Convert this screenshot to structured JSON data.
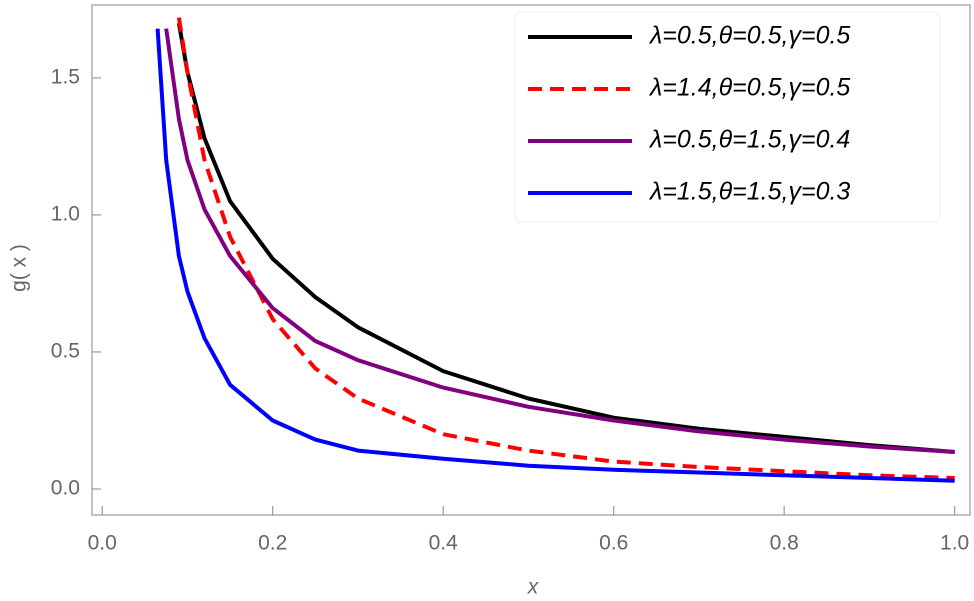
{
  "chart_data": {
    "type": "line",
    "x_label": "x",
    "y_label": "g( x )",
    "x": [
      0.065,
      0.075,
      0.09,
      0.1,
      0.12,
      0.15,
      0.2,
      0.25,
      0.3,
      0.4,
      0.5,
      0.6,
      0.7,
      0.8,
      0.9,
      1.0
    ],
    "series": [
      {
        "name": "λ=0.5,θ=0.5,γ=0.5",
        "color": "#000000",
        "dashed": false,
        "values": [
          null,
          null,
          1.7,
          1.52,
          1.28,
          1.05,
          0.84,
          0.7,
          0.59,
          0.43,
          0.33,
          0.26,
          0.22,
          0.19,
          0.16,
          0.135
        ]
      },
      {
        "name": "λ=1.4,θ=0.5,γ=0.5",
        "color": "#ff0000",
        "dashed": true,
        "values": [
          null,
          null,
          1.72,
          1.52,
          1.2,
          0.92,
          0.62,
          0.44,
          0.33,
          0.2,
          0.14,
          0.1,
          0.08,
          0.065,
          0.05,
          0.04
        ]
      },
      {
        "name": "λ=0.5,θ=1.5,γ=0.4",
        "color": "#800080",
        "dashed": false,
        "values": [
          null,
          1.68,
          1.35,
          1.2,
          1.02,
          0.85,
          0.66,
          0.54,
          0.47,
          0.37,
          0.3,
          0.25,
          0.21,
          0.18,
          0.155,
          0.135
        ]
      },
      {
        "name": "λ=1.5,θ=1.5,γ=0.3",
        "color": "#0000ff",
        "dashed": false,
        "values": [
          1.68,
          1.2,
          0.85,
          0.72,
          0.55,
          0.38,
          0.25,
          0.18,
          0.14,
          0.11,
          0.085,
          0.07,
          0.06,
          0.05,
          0.04,
          0.03
        ]
      }
    ],
    "xlim": [
      -0.012,
      1.018
    ],
    "ylim": [
      -0.095,
      1.766
    ],
    "xticks": [
      {
        "value": 0,
        "label": "0.0"
      },
      0.2,
      0.4,
      0.6,
      0.8,
      {
        "value": 1,
        "label": "1.0"
      }
    ],
    "yticks": [
      {
        "value": 0,
        "label": "0.0"
      },
      0.5,
      {
        "value": 1,
        "label": "1.0"
      },
      {
        "value": 1.5,
        "label": "1.5"
      }
    ],
    "grid": false,
    "legend_position": "upper right"
  }
}
